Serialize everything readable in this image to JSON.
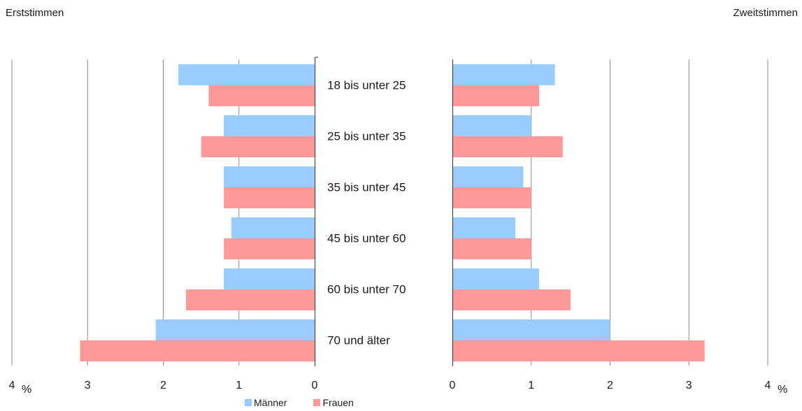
{
  "panels": {
    "left_title": "Erststimmen",
    "right_title": "Zweitstimmen"
  },
  "unit_label": "%",
  "colors": {
    "maenner": "#99ccff",
    "frauen": "#ff9999",
    "grid": "#888888",
    "axis": "#333333"
  },
  "chart_data": {
    "type": "bar",
    "orientation": "horizontal",
    "layout": "two mirrored panels",
    "categories": [
      "18 bis unter 25",
      "25 bis unter 35",
      "35 bis unter 45",
      "45 bis unter 60",
      "60 bis unter 70",
      "70 und älter"
    ],
    "xlim": [
      0,
      4
    ],
    "x_ticks": [
      "0",
      "1",
      "2",
      "3",
      "4"
    ],
    "grid": true,
    "legend_position": "bottom",
    "panels": [
      {
        "title": "Erststimmen",
        "direction": "leftward",
        "series": [
          {
            "name": "Männer",
            "values": [
              1.8,
              1.2,
              1.2,
              1.1,
              1.2,
              2.1
            ]
          },
          {
            "name": "Frauen",
            "values": [
              1.4,
              1.5,
              1.2,
              1.2,
              1.7,
              3.1
            ]
          }
        ]
      },
      {
        "title": "Zweitstimmen",
        "direction": "rightward",
        "series": [
          {
            "name": "Männer",
            "values": [
              1.3,
              1.0,
              0.9,
              0.8,
              1.1,
              2.0
            ]
          },
          {
            "name": "Frauen",
            "values": [
              1.1,
              1.4,
              1.0,
              1.0,
              1.5,
              3.2
            ]
          }
        ]
      }
    ]
  }
}
